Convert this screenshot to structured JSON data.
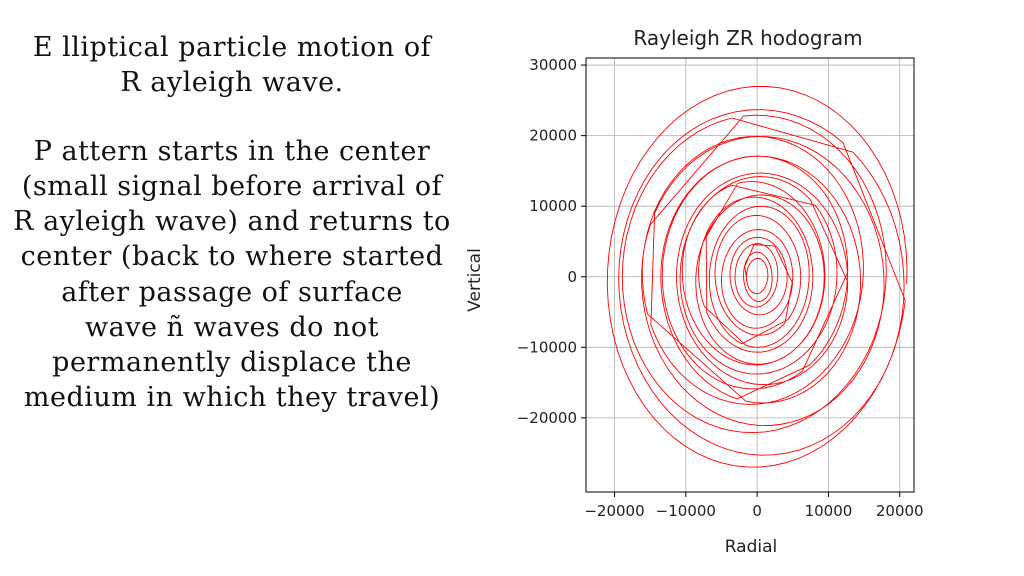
{
  "slide": {
    "heading_lines": [
      "E lliptical particle motion of",
      "R ayleigh wave."
    ],
    "body_lines": [
      "P attern starts in the center",
      "(small signal before arrival of",
      "R ayleigh wave) and returns to",
      "center (back to where started",
      "after passage of surface",
      "wave ñ waves do not",
      "permanently displace the",
      "medium in which they travel)"
    ]
  },
  "chart_data": {
    "type": "line",
    "title": "Rayleigh ZR hodogram",
    "xlabel": "Radial",
    "ylabel": "Vertical",
    "xlim": [
      -24000,
      22000
    ],
    "ylim": [
      -30500,
      31000
    ],
    "xticks": [
      -20000,
      -10000,
      0,
      10000,
      20000
    ],
    "xtick_labels": [
      "−20000",
      "−10000",
      "0",
      "10000",
      "20000"
    ],
    "yticks": [
      -20000,
      -10000,
      0,
      10000,
      20000,
      30000
    ],
    "ytick_labels": [
      "−20000",
      "−10000",
      "0",
      "10000",
      "20000",
      "30000"
    ],
    "grid": true,
    "line_color": "#ff0000",
    "series": [
      {
        "radial_amplitude": [
          21000,
          20000,
          18500,
          17000,
          15500,
          14000,
          13000,
          12000,
          11000,
          10000,
          9000,
          8000,
          7000,
          6000,
          5000,
          4000,
          3000,
          2000,
          1500
        ],
        "vertical_amplitude": [
          27000,
          24500,
          22500,
          20500,
          19000,
          17500,
          16500,
          15000,
          14000,
          13000,
          12000,
          11000,
          10000,
          8500,
          7000,
          5500,
          4500,
          3500,
          2500
        ],
        "center_radial": [
          0,
          600,
          -400,
          800,
          -600,
          500,
          -300,
          700,
          200,
          -500,
          400,
          -200,
          300,
          100,
          0,
          200,
          -100,
          100,
          0
        ],
        "center_vertical": [
          0,
          -800,
          400,
          -600,
          900,
          -400,
          600,
          -300,
          200,
          500,
          -400,
          300,
          0,
          200,
          -300,
          100,
          200,
          0,
          100
        ]
      }
    ]
  }
}
